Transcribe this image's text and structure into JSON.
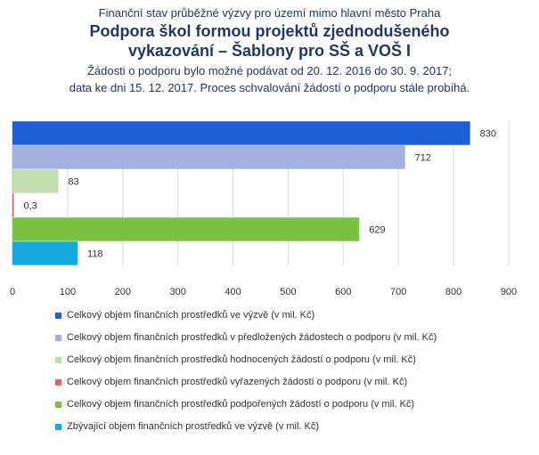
{
  "header": {
    "supertitle": "Finanční stav průběžné výzvy pro území mimo hlavní město Praha",
    "title_line1": "Podpora škol formou projektů zjednodušeného",
    "title_line2": "vykazování – Šablony pro SŠ a VOŠ I",
    "note_line1": "Žádosti o podporu bylo možné podávat od 20. 12. 2016 do 30. 9. 2017;",
    "note_line2": "data ke dni 15. 12. 2017. Proces schvalování žádostí o podporu stále probíhá."
  },
  "chart_data": {
    "type": "bar",
    "orientation": "horizontal",
    "xlim": [
      0,
      900
    ],
    "ticks": [
      "0",
      "100",
      "200",
      "300",
      "400",
      "500",
      "600",
      "700",
      "800",
      "900"
    ],
    "grid": true,
    "legend_position": "bottom",
    "bars": [
      {
        "value": 830,
        "label": "830",
        "color": "#1f5fd6",
        "legend": "Celkový objem finančních prostředků ve výzvě (v mil. Kč)"
      },
      {
        "value": 712,
        "label": "712",
        "color": "#a3b1e2",
        "legend": "Celkový objem finančních prostředků v předložených žádostech o podporu (v mil. Kč)"
      },
      {
        "value": 83,
        "label": "83",
        "color": "#c3dcae",
        "legend": "Celkový objem finančních prostředků hodnocených žádostí o podporu (v mil. Kč)"
      },
      {
        "value": 0.3,
        "label": "0,3",
        "color": "#e06666",
        "legend": "Celkový objem finančních prostředků vyřazených žádostí o podporu (v mil. Kč)"
      },
      {
        "value": 629,
        "label": "629",
        "color": "#7cc242",
        "legend": "Celkový objem finančních prostředků podpořených žádostí o podporu (v mil. Kč)"
      },
      {
        "value": 118,
        "label": "118",
        "color": "#18a9dc",
        "legend": "Zbývající objem finančních prostředků ve výzvě (v mil. Kč)"
      }
    ]
  }
}
